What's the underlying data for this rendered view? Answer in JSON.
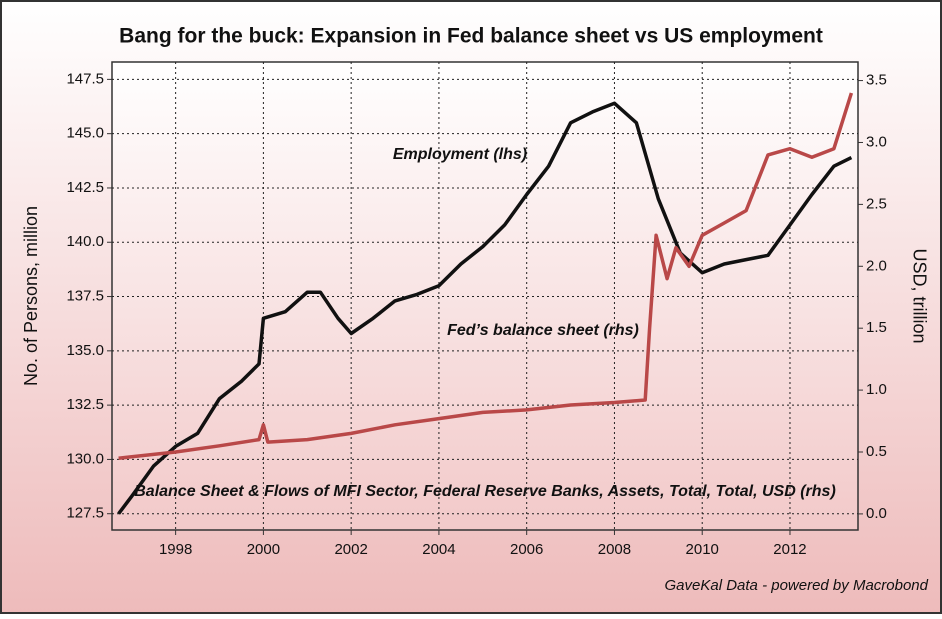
{
  "chart_data": {
    "type": "line",
    "title": "Bang for the buck: Expansion in Fed balance sheet vs US employment",
    "ylabel": "No. of Persons, million",
    "y2label": "USD, trillion",
    "annotations": [
      "Employment (lhs)",
      "Fed’s balance sheet (rhs)",
      "Balance Sheet & Flows of MFI Sector, Federal Reserve Banks, Assets, Total, Total, USD (rhs)"
    ],
    "source": "GaveKal Data - powered by Macrobond",
    "xlim": [
      1996.55,
      2013.55
    ],
    "xticks": [
      1998,
      2000,
      2002,
      2004,
      2006,
      2008,
      2010,
      2012
    ],
    "ylim": [
      126.75,
      148.3
    ],
    "yticks": [
      {
        "value": 127.5,
        "label": "127.5"
      },
      {
        "value": 130,
        "label": "130.0"
      },
      {
        "value": 132.5,
        "label": "132.5"
      },
      {
        "value": 135,
        "label": "135.0"
      },
      {
        "value": 137.5,
        "label": "137.5"
      },
      {
        "value": 140,
        "label": "140.0"
      },
      {
        "value": 142.5,
        "label": "142.5"
      },
      {
        "value": 145,
        "label": "145.0"
      },
      {
        "value": 147.5,
        "label": "147.5"
      }
    ],
    "y2lim": [
      -0.13,
      3.65
    ],
    "y2ticks": [
      {
        "value": 0,
        "label": "0.0"
      },
      0.5,
      {
        "value": 1,
        "label": "1.0"
      },
      1.5,
      {
        "value": 2,
        "label": "2.0"
      },
      2.5,
      {
        "value": 3,
        "label": "3.0"
      },
      3.5
    ],
    "grid": true,
    "series": [
      {
        "name": "Employment (lhs)",
        "color": "#111111",
        "axis": "y",
        "x": [
          1996.7,
          1997.0,
          1997.5,
          1998.0,
          1998.5,
          1999.0,
          1999.5,
          1999.9,
          2000.0,
          2000.5,
          2001.0,
          2001.3,
          2001.7,
          2002.0,
          2002.5,
          2003.0,
          2003.5,
          2004.0,
          2004.5,
          2005.0,
          2005.5,
          2006.0,
          2006.5,
          2007.0,
          2007.5,
          2008.0,
          2008.5,
          2009.0,
          2009.5,
          2010.0,
          2010.5,
          2011.0,
          2011.5,
          2012.0,
          2012.5,
          2013.0,
          2013.4
        ],
        "values": [
          127.5,
          128.3,
          129.7,
          130.6,
          131.2,
          132.8,
          133.6,
          134.4,
          136.5,
          136.8,
          137.7,
          137.7,
          136.5,
          135.8,
          136.5,
          137.3,
          137.6,
          138.0,
          139.0,
          139.8,
          140.8,
          142.2,
          143.5,
          145.5,
          146.0,
          146.4,
          145.5,
          142.0,
          139.5,
          138.6,
          139.0,
          139.2,
          139.4,
          140.8,
          142.2,
          143.5,
          143.9
        ]
      },
      {
        "name": "Fed’s balance sheet (rhs)",
        "color": "#b94848",
        "axis": "y2",
        "x": [
          1996.7,
          1998.0,
          1999.0,
          1999.9,
          2000.0,
          2000.1,
          2001.0,
          2002.0,
          2003.0,
          2004.0,
          2005.0,
          2006.0,
          2007.0,
          2008.0,
          2008.7,
          2008.8,
          2008.95,
          2009.2,
          2009.4,
          2009.7,
          2010.0,
          2010.5,
          2011.0,
          2011.5,
          2012.0,
          2012.5,
          2013.0,
          2013.4
        ],
        "values": [
          0.45,
          0.5,
          0.55,
          0.6,
          0.72,
          0.58,
          0.6,
          0.65,
          0.72,
          0.77,
          0.82,
          0.84,
          0.88,
          0.9,
          0.92,
          1.5,
          2.25,
          1.9,
          2.15,
          2.0,
          2.25,
          2.35,
          2.45,
          2.9,
          2.95,
          2.88,
          2.95,
          3.4
        ]
      }
    ]
  }
}
